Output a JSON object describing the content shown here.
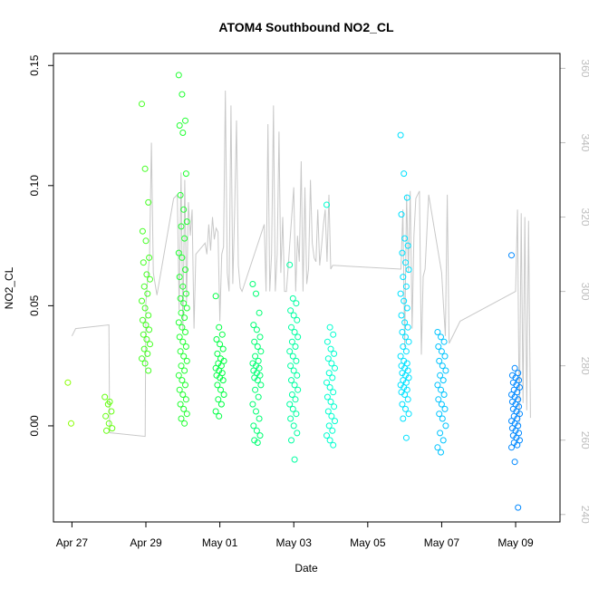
{
  "chart_data": {
    "type": "scatter",
    "title": "ATOM4 Southbound NO2_CL",
    "xlabel": "Date",
    "ylabel": "NO2_CL",
    "x_ticks": [
      "Apr 27",
      "Apr 29",
      "May 01",
      "May 03",
      "May 05",
      "May 07",
      "May 09"
    ],
    "y_ticks": [
      "0.00",
      "0.05",
      "0.10",
      "0.15"
    ],
    "y2_ticks": [
      "240",
      "260",
      "280",
      "300",
      "320",
      "340",
      "360"
    ],
    "xlim_days": [
      -0.5,
      13.2
    ],
    "ylim": [
      -0.04,
      0.155
    ],
    "y2lim": [
      238,
      364
    ],
    "grid": false,
    "colors": {
      "frame": "#000000",
      "secondary_axis": "#bdbdbd",
      "secondary_line": "#c8c8c8",
      "point_gradient": [
        "#88ff00",
        "#00ff44",
        "#00ffff",
        "#0088ff"
      ]
    },
    "series": [
      {
        "marker": "open-circle",
        "clusters": [
          {
            "date": "Apr 27",
            "points": [
              0.018,
              0.001
            ]
          },
          {
            "date": "Apr 28",
            "points": [
              0.012,
              0.009,
              0.006,
              0.004,
              0.001,
              -0.001,
              -0.002,
              0.01
            ]
          },
          {
            "date": "Apr 29",
            "points": [
              0.134,
              0.107,
              0.093,
              0.081,
              0.077,
              0.07,
              0.068,
              0.063,
              0.061,
              0.058,
              0.055,
              0.052,
              0.049,
              0.046,
              0.044,
              0.042,
              0.04,
              0.038,
              0.036,
              0.034,
              0.032,
              0.03,
              0.028,
              0.026,
              0.023
            ]
          },
          {
            "date": "Apr 30",
            "points": [
              0.146,
              0.138,
              0.127,
              0.125,
              0.122,
              0.105,
              0.096,
              0.09,
              0.085,
              0.083,
              0.078,
              0.072,
              0.07,
              0.065,
              0.062,
              0.058,
              0.055,
              0.053,
              0.051,
              0.049,
              0.047,
              0.045,
              0.043,
              0.041,
              0.039,
              0.037,
              0.035,
              0.033,
              0.031,
              0.029,
              0.027,
              0.025,
              0.023,
              0.021,
              0.019,
              0.017,
              0.015,
              0.013,
              0.011,
              0.009,
              0.007,
              0.005,
              0.003,
              0.001
            ]
          },
          {
            "date": "May 01",
            "points": [
              0.054,
              0.041,
              0.038,
              0.036,
              0.034,
              0.032,
              0.03,
              0.028,
              0.027,
              0.026,
              0.025,
              0.024,
              0.023,
              0.022,
              0.021,
              0.02,
              0.019,
              0.017,
              0.015,
              0.013,
              0.011,
              0.009,
              0.006,
              0.004
            ]
          },
          {
            "date": "May 02",
            "points": [
              0.059,
              0.055,
              0.047,
              0.042,
              0.04,
              0.037,
              0.035,
              0.033,
              0.031,
              0.029,
              0.027,
              0.026,
              0.025,
              0.024,
              0.023,
              0.022,
              0.021,
              0.02,
              0.019,
              0.017,
              0.015,
              0.012,
              0.009,
              0.006,
              0.003,
              0.0,
              -0.002,
              -0.004,
              -0.006,
              -0.007
            ]
          },
          {
            "date": "May 03",
            "points": [
              0.067,
              0.053,
              0.051,
              0.048,
              0.046,
              0.044,
              0.041,
              0.039,
              0.037,
              0.035,
              0.033,
              0.031,
              0.029,
              0.027,
              0.025,
              0.023,
              0.021,
              0.019,
              0.017,
              0.015,
              0.013,
              0.011,
              0.009,
              0.007,
              0.005,
              0.003,
              0.0,
              -0.003,
              -0.006,
              -0.014
            ]
          },
          {
            "date": "May 04",
            "points": [
              0.092,
              0.041,
              0.038,
              0.035,
              0.032,
              0.03,
              0.028,
              0.026,
              0.024,
              0.022,
              0.02,
              0.018,
              0.016,
              0.014,
              0.012,
              0.01,
              0.008,
              0.006,
              0.004,
              0.002,
              0.0,
              -0.002,
              -0.004,
              -0.006,
              -0.008
            ]
          },
          {
            "date": "May 06",
            "points": [
              0.121,
              0.105,
              0.095,
              0.088,
              0.078,
              0.075,
              0.072,
              0.068,
              0.065,
              0.062,
              0.058,
              0.055,
              0.052,
              0.049,
              0.046,
              0.043,
              0.041,
              0.039,
              0.037,
              0.035,
              0.033,
              0.031,
              0.029,
              0.027,
              0.026,
              0.025,
              0.024,
              0.023,
              0.022,
              0.021,
              0.02,
              0.019,
              0.018,
              0.017,
              0.016,
              0.015,
              0.014,
              0.013,
              0.011,
              0.009,
              0.007,
              0.005,
              0.003,
              -0.005
            ]
          },
          {
            "date": "May 07",
            "points": [
              0.039,
              0.037,
              0.035,
              0.033,
              0.031,
              0.029,
              0.027,
              0.025,
              0.023,
              0.021,
              0.019,
              0.017,
              0.015,
              0.013,
              0.011,
              0.009,
              0.007,
              0.005,
              0.003,
              0.0,
              -0.003,
              -0.006,
              -0.009,
              -0.011
            ]
          },
          {
            "date": "May 09",
            "points": [
              0.071,
              0.024,
              0.022,
              0.021,
              0.02,
              0.019,
              0.018,
              0.017,
              0.016,
              0.015,
              0.014,
              0.013,
              0.012,
              0.011,
              0.01,
              0.009,
              0.008,
              0.007,
              0.006,
              0.005,
              0.004,
              0.003,
              0.002,
              0.001,
              0.0,
              -0.001,
              -0.002,
              -0.003,
              -0.004,
              -0.005,
              -0.006,
              -0.007,
              -0.008,
              -0.009,
              -0.015,
              -0.034
            ]
          }
        ]
      }
    ],
    "secondary_series": {
      "axis": "right",
      "trace": [
        {
          "x": 0.0,
          "y": 288
        },
        {
          "x": 0.1,
          "y": 290
        },
        {
          "x": 1.0,
          "y": 291
        },
        {
          "x": 1.02,
          "y": 262
        },
        {
          "x": 1.98,
          "y": 261
        },
        {
          "x": 2.0,
          "y": 297
        },
        {
          "x": 2.1,
          "y": 310
        },
        {
          "x": 2.15,
          "y": 340
        },
        {
          "x": 2.2,
          "y": 305
        },
        {
          "x": 2.3,
          "y": 299
        },
        {
          "x": 2.75,
          "y": 325
        },
        {
          "x": 2.85,
          "y": 326
        },
        {
          "x": 2.9,
          "y": 295
        },
        {
          "x": 2.95,
          "y": 332
        },
        {
          "x": 3.0,
          "y": 289
        },
        {
          "x": 3.05,
          "y": 330
        },
        {
          "x": 3.1,
          "y": 297
        },
        {
          "x": 3.15,
          "y": 324
        },
        {
          "x": 3.2,
          "y": 315
        },
        {
          "x": 3.25,
          "y": 322
        },
        {
          "x": 3.3,
          "y": 290
        },
        {
          "x": 3.35,
          "y": 310
        },
        {
          "x": 3.6,
          "y": 313
        },
        {
          "x": 3.65,
          "y": 310
        },
        {
          "x": 3.7,
          "y": 318
        },
        {
          "x": 3.75,
          "y": 311
        },
        {
          "x": 3.8,
          "y": 320
        },
        {
          "x": 3.85,
          "y": 314
        },
        {
          "x": 3.9,
          "y": 317
        },
        {
          "x": 3.95,
          "y": 316
        },
        {
          "x": 4.0,
          "y": 292
        },
        {
          "x": 4.05,
          "y": 310
        },
        {
          "x": 4.1,
          "y": 312
        },
        {
          "x": 4.15,
          "y": 354
        },
        {
          "x": 4.2,
          "y": 305
        },
        {
          "x": 4.25,
          "y": 300
        },
        {
          "x": 4.3,
          "y": 350
        },
        {
          "x": 4.35,
          "y": 302
        },
        {
          "x": 4.4,
          "y": 321
        },
        {
          "x": 4.45,
          "y": 346
        },
        {
          "x": 4.5,
          "y": 307
        },
        {
          "x": 4.55,
          "y": 301
        },
        {
          "x": 4.6,
          "y": 300
        },
        {
          "x": 5.2,
          "y": 318
        },
        {
          "x": 5.25,
          "y": 300
        },
        {
          "x": 5.3,
          "y": 345
        },
        {
          "x": 5.35,
          "y": 300
        },
        {
          "x": 5.4,
          "y": 310
        },
        {
          "x": 5.45,
          "y": 350
        },
        {
          "x": 5.5,
          "y": 300
        },
        {
          "x": 5.55,
          "y": 310
        },
        {
          "x": 5.6,
          "y": 343
        },
        {
          "x": 5.65,
          "y": 305
        },
        {
          "x": 5.7,
          "y": 320
        },
        {
          "x": 5.75,
          "y": 300
        },
        {
          "x": 5.8,
          "y": 300
        },
        {
          "x": 6.0,
          "y": 328
        },
        {
          "x": 6.05,
          "y": 300
        },
        {
          "x": 6.1,
          "y": 315
        },
        {
          "x": 6.15,
          "y": 308
        },
        {
          "x": 6.2,
          "y": 335
        },
        {
          "x": 6.25,
          "y": 300
        },
        {
          "x": 6.3,
          "y": 328
        },
        {
          "x": 6.35,
          "y": 302
        },
        {
          "x": 6.4,
          "y": 306
        },
        {
          "x": 6.45,
          "y": 330
        },
        {
          "x": 6.5,
          "y": 313
        },
        {
          "x": 6.55,
          "y": 309
        },
        {
          "x": 6.6,
          "y": 308
        },
        {
          "x": 6.65,
          "y": 322
        },
        {
          "x": 6.7,
          "y": 307
        },
        {
          "x": 6.75,
          "y": 312
        },
        {
          "x": 6.8,
          "y": 318
        },
        {
          "x": 6.85,
          "y": 322
        },
        {
          "x": 6.9,
          "y": 308
        },
        {
          "x": 6.95,
          "y": 326
        },
        {
          "x": 7.0,
          "y": 306
        },
        {
          "x": 7.05,
          "y": 307
        },
        {
          "x": 7.1,
          "y": 307
        },
        {
          "x": 8.9,
          "y": 306
        },
        {
          "x": 8.95,
          "y": 322
        },
        {
          "x": 9.0,
          "y": 285
        },
        {
          "x": 9.05,
          "y": 326
        },
        {
          "x": 9.1,
          "y": 305
        },
        {
          "x": 9.15,
          "y": 327
        },
        {
          "x": 9.2,
          "y": 290
        },
        {
          "x": 9.25,
          "y": 315
        },
        {
          "x": 9.3,
          "y": 325
        },
        {
          "x": 9.4,
          "y": 327
        },
        {
          "x": 9.45,
          "y": 283
        },
        {
          "x": 9.5,
          "y": 304
        },
        {
          "x": 9.55,
          "y": 306
        },
        {
          "x": 9.65,
          "y": 326
        },
        {
          "x": 10.0,
          "y": 305
        },
        {
          "x": 10.05,
          "y": 296
        },
        {
          "x": 10.1,
          "y": 288
        },
        {
          "x": 10.15,
          "y": 326
        },
        {
          "x": 10.2,
          "y": 286
        },
        {
          "x": 10.5,
          "y": 292
        },
        {
          "x": 12.0,
          "y": 300
        },
        {
          "x": 12.05,
          "y": 322
        },
        {
          "x": 12.1,
          "y": 264
        },
        {
          "x": 12.15,
          "y": 321
        },
        {
          "x": 12.2,
          "y": 270
        },
        {
          "x": 12.25,
          "y": 320
        },
        {
          "x": 12.3,
          "y": 268
        },
        {
          "x": 12.35,
          "y": 319
        },
        {
          "x": 12.4,
          "y": 266
        }
      ]
    }
  }
}
